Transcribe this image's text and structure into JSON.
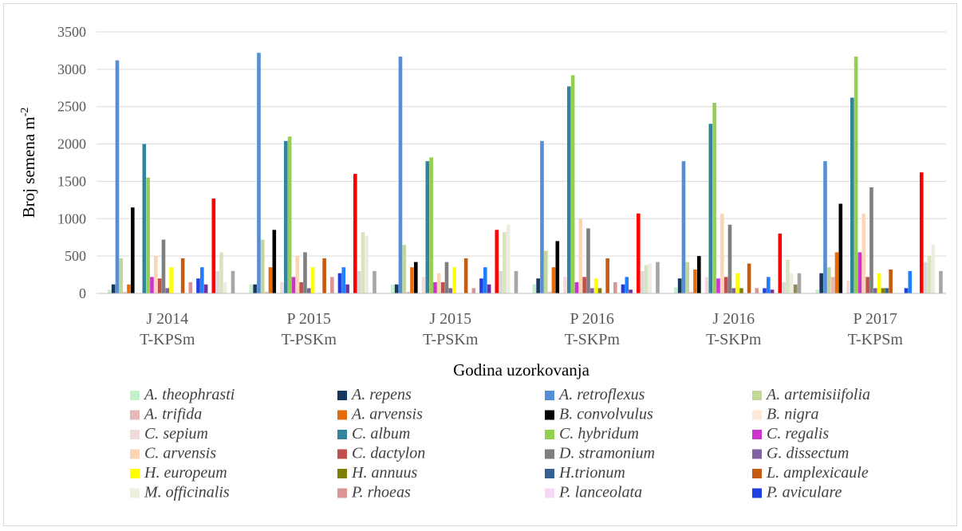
{
  "chart_data": {
    "type": "bar",
    "ylabel": "Broj semena m",
    "ylabel_sup": "-2",
    "xlabel": "Godina uzorkovanja",
    "ylim": [
      0,
      3500
    ],
    "yticks": [
      0,
      500,
      1000,
      1500,
      2000,
      2500,
      3000,
      3500
    ],
    "grid": true,
    "legend_position": "bottom",
    "categories": [
      [
        "J 2014",
        "T-KPSm"
      ],
      [
        "P 2015",
        "T-PSKm"
      ],
      [
        "J 2015",
        "T-PSKm"
      ],
      [
        "P 2016",
        "T-SKPm"
      ],
      [
        "J 2016",
        "T-SKPm"
      ],
      [
        "P 2017",
        "T-KPSm"
      ]
    ],
    "series": [
      {
        "name": "A. theophrasti",
        "color": "#c6efce",
        "values": [
          50,
          120,
          120,
          120,
          80,
          50
        ]
      },
      {
        "name": "A. repens",
        "color": "#17375e",
        "values": [
          120,
          120,
          120,
          200,
          200,
          270
        ]
      },
      {
        "name": "A. retroflexus",
        "color": "#558ed5",
        "values": [
          3120,
          3220,
          3170,
          2040,
          1770,
          1770
        ]
      },
      {
        "name": "A. artemisiifolia",
        "color": "#c3d69b",
        "values": [
          470,
          720,
          650,
          570,
          420,
          350
        ]
      },
      {
        "name": "A. trifida",
        "color": "#e6b9b8",
        "values": [
          20,
          20,
          20,
          20,
          20,
          220
        ]
      },
      {
        "name": "A. arvensis",
        "color": "#e46c0a",
        "values": [
          120,
          350,
          350,
          350,
          320,
          550
        ]
      },
      {
        "name": "B. convolvulus",
        "color": "#000000",
        "values": [
          1150,
          850,
          420,
          700,
          500,
          1200
        ]
      },
      {
        "name": "B. nigra",
        "color": "#fde9d9",
        "values": [
          0,
          0,
          0,
          0,
          0,
          0
        ]
      },
      {
        "name": "C. sepium",
        "color": "#f2dcdb",
        "values": [
          0,
          150,
          220,
          220,
          220,
          170
        ]
      },
      {
        "name": "C. album",
        "color": "#31849b",
        "values": [
          2000,
          2040,
          1770,
          2770,
          2270,
          2620
        ]
      },
      {
        "name": "C. hybridum",
        "color": "#92d050",
        "values": [
          1550,
          2100,
          1820,
          2920,
          2550,
          3170
        ]
      },
      {
        "name": "C. regalis",
        "color": "#cc33cc",
        "values": [
          220,
          220,
          150,
          150,
          200,
          550
        ]
      },
      {
        "name": "C. arvensis",
        "color": "#fcd5b4",
        "values": [
          500,
          500,
          270,
          1000,
          1070,
          1070
        ]
      },
      {
        "name": "C. dactylon",
        "color": "#c0504d",
        "values": [
          200,
          150,
          150,
          220,
          220,
          220
        ]
      },
      {
        "name": "D. stramonium",
        "color": "#7f7f7f",
        "values": [
          720,
          550,
          420,
          870,
          920,
          1420
        ]
      },
      {
        "name": "G. dissectum",
        "color": "#8064a2",
        "values": [
          70,
          70,
          70,
          70,
          70,
          70
        ]
      },
      {
        "name": "H. europeum",
        "color": "#ffff00",
        "values": [
          350,
          350,
          350,
          200,
          270,
          270
        ]
      },
      {
        "name": "H. annuus",
        "color": "#7f7f00",
        "values": [
          0,
          0,
          0,
          70,
          70,
          70
        ]
      },
      {
        "name": "H.trionum",
        "color": "#366092",
        "values": [
          0,
          0,
          0,
          0,
          0,
          70
        ]
      },
      {
        "name": "L. amplexicaule",
        "color": "#c55a11",
        "values": [
          470,
          470,
          470,
          470,
          400,
          320
        ]
      },
      {
        "name": "M. officinalis",
        "color": "#ebf1de",
        "values": [
          0,
          0,
          0,
          0,
          0,
          0
        ]
      },
      {
        "name": "P. rhoeas",
        "color": "#da9694",
        "values": [
          150,
          220,
          70,
          150,
          70,
          0
        ]
      },
      {
        "name": "P. lanceolata",
        "color": "#f5d8f5",
        "values": [
          0,
          0,
          0,
          0,
          0,
          0
        ]
      },
      {
        "name": "P. aviculare",
        "color": "#1f3fe0",
        "values": [
          200,
          270,
          200,
          120,
          70,
          70
        ]
      },
      {
        "name": "",
        "color": "#1f7fff",
        "values": [
          350,
          350,
          350,
          220,
          220,
          300
        ]
      },
      {
        "name": "",
        "color": "#7030a0",
        "values": [
          120,
          120,
          120,
          50,
          50,
          0
        ]
      },
      {
        "name": "",
        "color": "#ffffff",
        "values": [
          0,
          0,
          0,
          0,
          0,
          0
        ]
      },
      {
        "name": "",
        "color": "#ff0000",
        "values": [
          1270,
          1600,
          850,
          1070,
          800,
          1620
        ]
      },
      {
        "name": "",
        "color": "#d9d9d9",
        "values": [
          300,
          300,
          300,
          300,
          150,
          420
        ]
      },
      {
        "name": "",
        "color": "#d7e4bd",
        "values": [
          550,
          820,
          820,
          380,
          450,
          500
        ]
      },
      {
        "name": "",
        "color": "#eeece1",
        "values": [
          150,
          770,
          920,
          400,
          270,
          650
        ]
      },
      {
        "name": "",
        "color": "#938953",
        "values": [
          0,
          0,
          0,
          0,
          120,
          0
        ]
      },
      {
        "name": "",
        "color": "#a6a6a6",
        "values": [
          300,
          300,
          300,
          420,
          270,
          300
        ]
      }
    ]
  }
}
